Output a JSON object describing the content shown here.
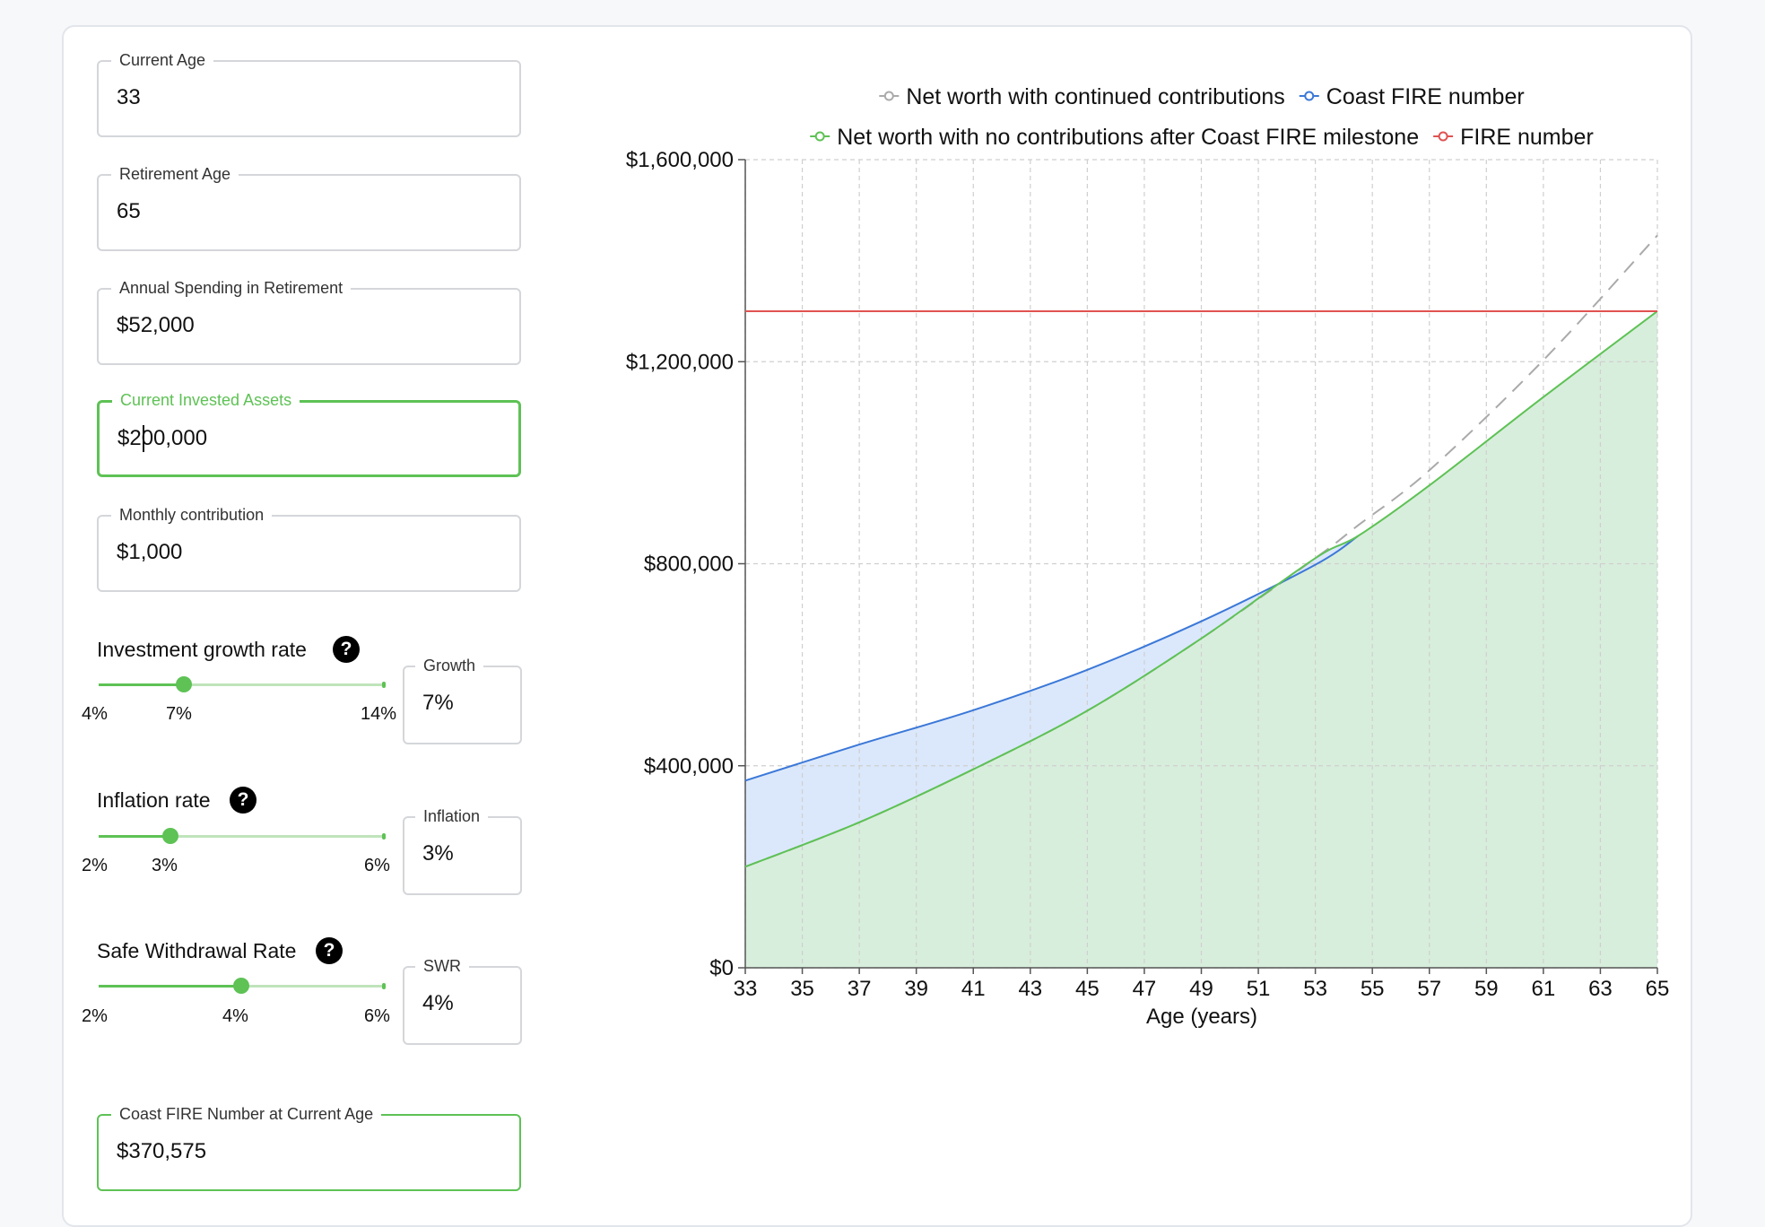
{
  "fields": {
    "current_age": {
      "label": "Current Age",
      "value": "33"
    },
    "retirement_age": {
      "label": "Retirement Age",
      "value": "65"
    },
    "annual_spending": {
      "label": "Annual Spending in Retirement",
      "value": "$52,000"
    },
    "current_assets": {
      "label": "Current Invested Assets",
      "value": "$200,000"
    },
    "monthly_contribution": {
      "label": "Monthly contribution",
      "value": "$1,000"
    }
  },
  "sliders": {
    "growth": {
      "label": "Investment growth rate",
      "min": "4%",
      "mid": "7%",
      "max": "14%",
      "box_label": "Growth",
      "value": "7%",
      "level": 0.3
    },
    "inflation": {
      "label": "Inflation rate",
      "min": "2%",
      "mid": "3%",
      "max": "6%",
      "box_label": "Inflation",
      "value": "3%",
      "level": 0.25
    },
    "swr": {
      "label": "Safe Withdrawal Rate",
      "min": "2%",
      "mid": "4%",
      "max": "6%",
      "box_label": "SWR",
      "value": "4%",
      "level": 0.5
    }
  },
  "help_icon": "?",
  "result": {
    "label": "Coast FIRE Number at Current Age",
    "value": "$370,575"
  },
  "chart_data": {
    "type": "area",
    "xlabel": "Age (years)",
    "ylabel": "",
    "xlim": [
      33,
      65
    ],
    "ylim": [
      0,
      1600000
    ],
    "x_ticks": [
      "33",
      "35",
      "37",
      "39",
      "41",
      "43",
      "45",
      "47",
      "49",
      "51",
      "53",
      "55",
      "57",
      "59",
      "61",
      "63",
      "65"
    ],
    "y_ticks": [
      "$0",
      "$400,000",
      "$800,000",
      "$1,200,000",
      "$1,600,000"
    ],
    "grid": true,
    "legend_placement": "top",
    "legend": [
      {
        "name": "Net worth with continued contributions",
        "color": "#aaaaaa"
      },
      {
        "name": "Coast FIRE number",
        "color": "#3b78d8"
      },
      {
        "name": "Net worth with no contributions after Coast FIRE milestone",
        "color": "#5ec255"
      },
      {
        "name": "FIRE number",
        "color": "#e05252"
      }
    ],
    "series": [
      {
        "name": "Net worth with continued contributions",
        "x": [
          33,
          37,
          41,
          45,
          49,
          53,
          54.5,
          57,
          61,
          65
        ],
        "values": [
          200000,
          288000,
          393000,
          509000,
          652000,
          811000,
          876000,
          985000,
          1203000,
          1450000
        ]
      },
      {
        "name": "Coast FIRE number",
        "x": [
          33,
          37,
          41,
          45,
          49,
          53,
          54.5
        ],
        "values": [
          370575,
          442000,
          510000,
          590000,
          686000,
          798000,
          855000
        ]
      },
      {
        "name": "Net worth with no contributions after Coast FIRE milestone",
        "x": [
          33,
          37,
          41,
          45,
          49,
          53,
          54.5,
          57,
          61,
          65
        ],
        "values": [
          200000,
          288000,
          393000,
          509000,
          652000,
          811000,
          855000,
          955000,
          1130000,
          1300000
        ]
      },
      {
        "name": "FIRE number",
        "x": [
          33,
          65
        ],
        "values": [
          1300000,
          1300000
        ]
      }
    ],
    "colors": {
      "grid": "#cfcfcf",
      "axis": "#555555",
      "fill_green": "#d8eedc",
      "fill_blue": "#dbe8fb"
    }
  }
}
